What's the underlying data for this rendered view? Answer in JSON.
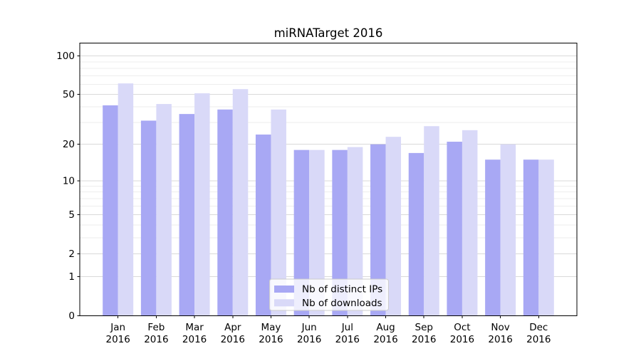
{
  "figure": {
    "background": "#ffffff"
  },
  "chart_data": {
    "type": "bar",
    "title": "miRNATarget 2016",
    "categories": [
      "Jan 2016",
      "Feb 2016",
      "Mar 2016",
      "Apr 2016",
      "May 2016",
      "Jun 2016",
      "Jul 2016",
      "Aug 2016",
      "Sep 2016",
      "Oct 2016",
      "Nov 2016",
      "Dec 2016"
    ],
    "series": [
      {
        "name": "Nb of distinct IPs",
        "color": "#a8a8f4",
        "values": [
          41,
          31,
          35,
          38,
          24,
          18,
          18,
          20,
          17,
          21,
          15,
          15
        ]
      },
      {
        "name": "Nb of downloads",
        "color": "#d9d9f8",
        "values": [
          61,
          42,
          51,
          55,
          38,
          18,
          19,
          23,
          28,
          26,
          20,
          15
        ]
      }
    ],
    "xlabel": "",
    "ylabel": "",
    "yscale": "log1p",
    "ylim": [
      0,
      126
    ],
    "yticks": [
      0,
      1,
      2,
      5,
      10,
      20,
      50,
      100
    ],
    "ytick_labels": [
      "0",
      "1",
      "2",
      "5",
      "10",
      "20",
      "50",
      "100"
    ],
    "minor_yticks": [
      3,
      4,
      6,
      7,
      8,
      9,
      30,
      40,
      60,
      70,
      80,
      90
    ],
    "grid": "horizontal-major-and-minor",
    "legend": {
      "position": "inside-bottom-center",
      "items": [
        "Nb of distinct IPs",
        "Nb of downloads"
      ]
    }
  },
  "colors": {
    "bar_distinct_ips": "#a8a8f4",
    "bar_downloads": "#d9d9f8",
    "grid_major": "#d9d9d9",
    "grid_minor": "#ededed",
    "axis_line": "#000000",
    "text": "#000000",
    "legend_border": "#cccccc",
    "legend_background": "rgba(255,255,255,0.8)"
  }
}
